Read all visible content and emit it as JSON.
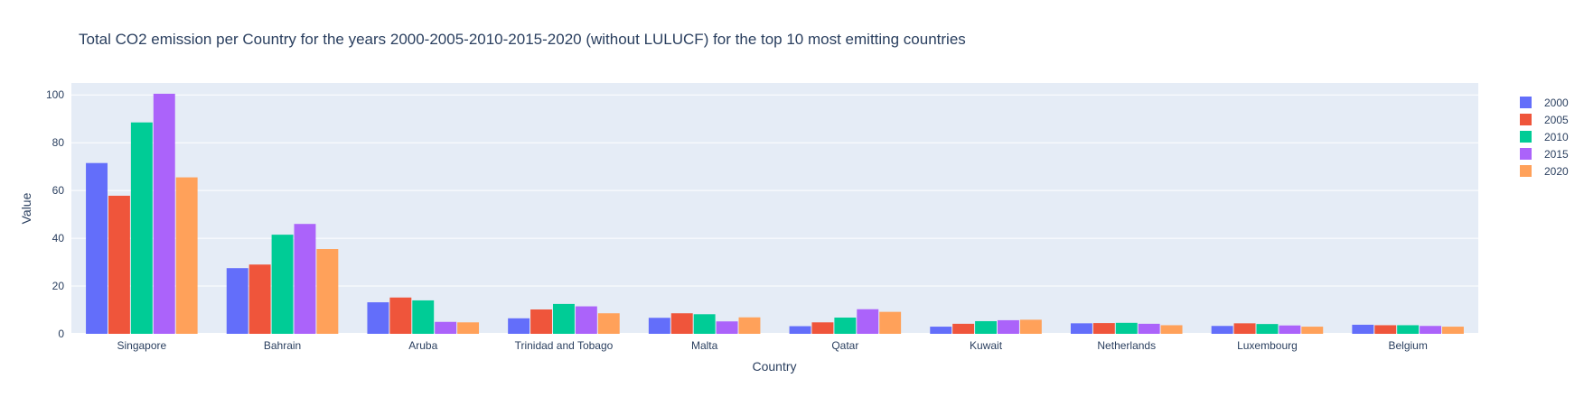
{
  "chart_data": {
    "type": "bar",
    "title": "Total CO2 emission per Country for the years 2000-2005-2010-2015-2020 (without LULUCF) for the top 10 most emitting countries",
    "xlabel": "Country",
    "ylabel": "Value",
    "ylim": [
      0,
      105
    ],
    "yticks": [
      0,
      20,
      40,
      60,
      80,
      100
    ],
    "grid": true,
    "legend_position": "top-right",
    "categories": [
      "Singapore",
      "Bahrain",
      "Aruba",
      "Trinidad and Tobago",
      "Malta",
      "Qatar",
      "Kuwait",
      "Netherlands",
      "Luxembourg",
      "Belgium"
    ],
    "series": [
      {
        "name": "2000",
        "color": "#636efa",
        "values": [
          71.5,
          27.5,
          13.2,
          6.5,
          6.7,
          3.2,
          3.0,
          4.4,
          3.3,
          3.8
        ]
      },
      {
        "name": "2005",
        "color": "#ef553b",
        "values": [
          57.8,
          29.0,
          15.2,
          10.2,
          8.6,
          4.8,
          4.2,
          4.5,
          4.4,
          3.6
        ]
      },
      {
        "name": "2010",
        "color": "#00cc96",
        "values": [
          88.5,
          41.5,
          14.0,
          12.5,
          8.2,
          6.8,
          5.3,
          4.6,
          4.1,
          3.6
        ]
      },
      {
        "name": "2015",
        "color": "#ab63fa",
        "values": [
          100.5,
          46.0,
          5.0,
          11.5,
          5.2,
          10.3,
          5.7,
          4.2,
          3.5,
          3.3
        ]
      },
      {
        "name": "2020",
        "color": "#ffa15a",
        "values": [
          65.5,
          35.5,
          4.8,
          8.6,
          6.9,
          9.2,
          5.9,
          3.6,
          3.0,
          3.0
        ]
      }
    ]
  }
}
